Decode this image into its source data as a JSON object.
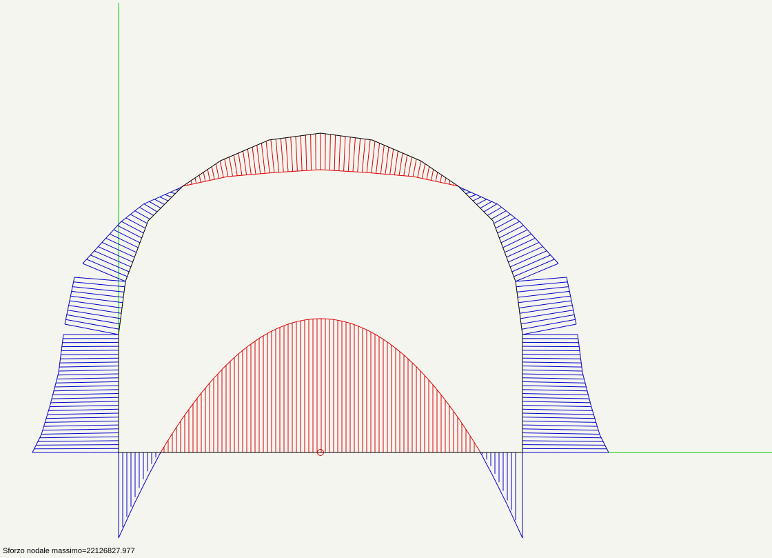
{
  "status": {
    "max_nodal_stress_text": "Sforzo nodale massimo=22126827.977"
  },
  "colors": {
    "background": "#f5f5f0",
    "axis": "#00cc00",
    "structure": "#000000",
    "positive_stress": "#0000cc",
    "negative_stress": "#dd0000"
  }
}
